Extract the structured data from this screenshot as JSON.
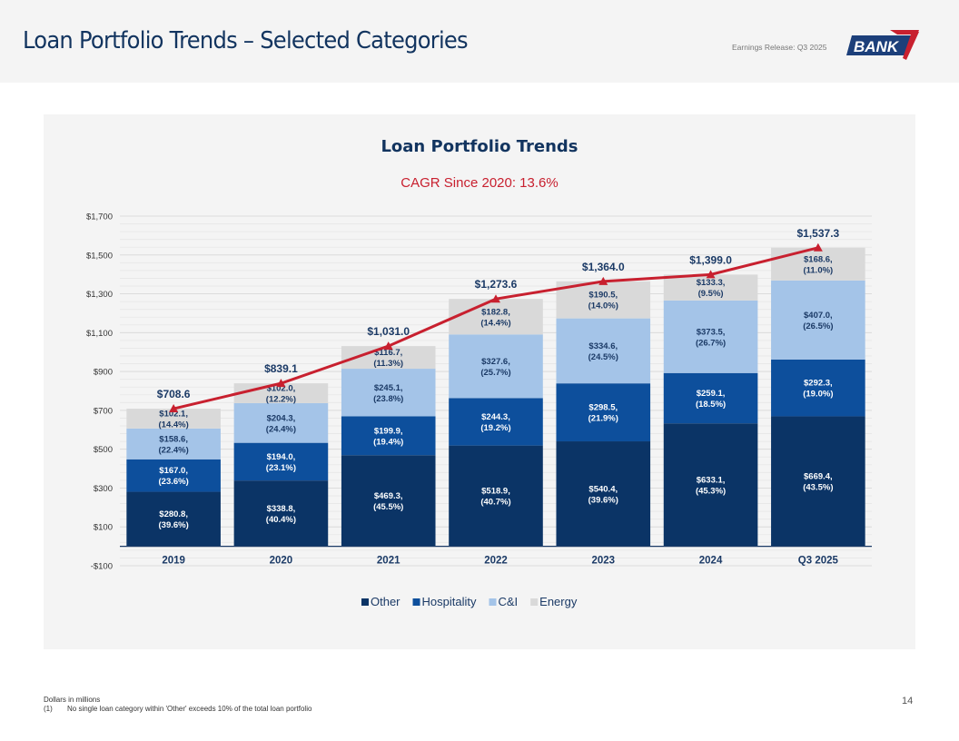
{
  "header": {
    "title": "Loan Portfolio Trends – Selected Categories",
    "release": "Earnings Release: Q3 2025",
    "logo_text": "BANK"
  },
  "colors": {
    "other": "#0b3466",
    "hospitality": "#0d4f9c",
    "cni": "#a4c4e8",
    "energy": "#d9d9d9",
    "line": "#c8202f",
    "title": "#12345f"
  },
  "chart_data": {
    "type": "bar",
    "stacked": true,
    "title": "Loan Portfolio Trends",
    "subtitle": "CAGR Since 2020: 13.6%",
    "xlabel": "",
    "ylabel": "",
    "ylim": [
      -100,
      1700
    ],
    "yticks": [
      -100,
      100,
      300,
      500,
      700,
      900,
      1100,
      1300,
      1500,
      1700
    ],
    "ytick_labels": [
      "-$100",
      "$100",
      "$300",
      "$500",
      "$700",
      "$900",
      "$1,100",
      "$1,300",
      "$1,500",
      "$1,700"
    ],
    "grid": true,
    "legend_position": "bottom",
    "categories": [
      "2019",
      "2020",
      "2021",
      "2022",
      "2023",
      "2024",
      "Q3 2025"
    ],
    "series": [
      {
        "name": "Other",
        "key": "other",
        "values": [
          280.8,
          338.8,
          469.3,
          518.9,
          540.4,
          633.1,
          669.4
        ],
        "labels": [
          "$280.8,\n(39.6%)",
          "$338.8,\n(40.4%)",
          "$469.3,\n(45.5%)",
          "$518.9,\n(40.7%)",
          "$540.4,\n(39.6%)",
          "$633.1,\n(45.3%)",
          "$669.4,\n(43.5%)"
        ]
      },
      {
        "name": "Hospitality",
        "key": "hospitality",
        "values": [
          167.0,
          194.0,
          199.9,
          244.3,
          298.5,
          259.1,
          292.3
        ],
        "labels": [
          "$167.0,\n(23.6%)",
          "$194.0,\n(23.1%)",
          "$199.9,\n(19.4%)",
          "$244.3,\n(19.2%)",
          "$298.5,\n(21.9%)",
          "$259.1,\n(18.5%)",
          "$292.3,\n(19.0%)"
        ]
      },
      {
        "name": "C&I",
        "key": "cni",
        "values": [
          158.6,
          204.3,
          245.1,
          327.6,
          334.6,
          373.5,
          407.0
        ],
        "labels": [
          "$158.6,\n(22.4%)",
          "$204.3,\n(24.4%)",
          "$245.1,\n(23.8%)",
          "$327.6,\n(25.7%)",
          "$334.6,\n(24.5%)",
          "$373.5,\n(26.7%)",
          "$407.0,\n(26.5%)"
        ]
      },
      {
        "name": "Energy",
        "key": "energy",
        "values": [
          102.1,
          102.0,
          116.7,
          182.8,
          190.5,
          133.3,
          168.6
        ],
        "labels": [
          "$102.1,\n(14.4%)",
          "$102.0,\n(12.2%)",
          "$116.7,\n(11.3%)",
          "$182.8,\n(14.4%)",
          "$190.5,\n(14.0%)",
          "$133.3,\n(9.5%)",
          "$168.6,\n(11.0%)"
        ]
      }
    ],
    "totals": {
      "name": "Total",
      "values": [
        708.6,
        839.1,
        1031.0,
        1273.6,
        1364.0,
        1399.0,
        1537.3
      ],
      "labels": [
        "$708.6",
        "$839.1",
        "$1,031.0",
        "$1,273.6",
        "$1,364.0",
        "$1,399.0",
        "$1,537.3"
      ]
    }
  },
  "footer": {
    "note": "Dollars in millions",
    "footnote_num": "(1)",
    "footnote_text": "No single loan category within 'Other' exceeds 10% of the total loan portfolio",
    "page": "14"
  }
}
